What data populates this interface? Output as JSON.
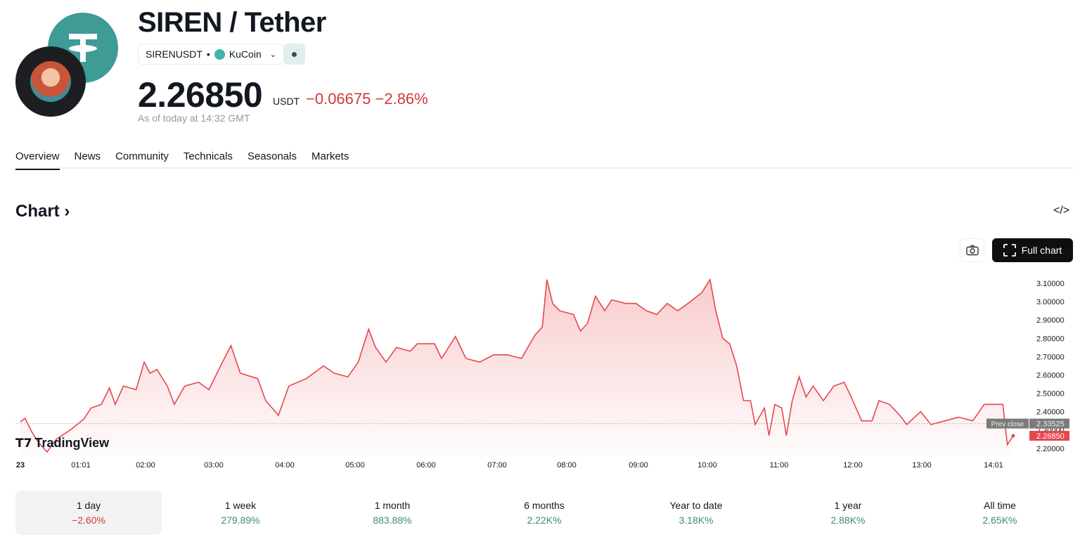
{
  "header": {
    "title": "SIREN / Tether",
    "symbol": "SIRENUSDT",
    "exchange": "KuCoin",
    "price": "2.26850",
    "currency": "USDT",
    "change": "−0.06675",
    "change_pct": "−2.86%",
    "as_of": "As of today at 14:32 GMT"
  },
  "tabs": [
    {
      "label": "Overview"
    },
    {
      "label": "News"
    },
    {
      "label": "Community"
    },
    {
      "label": "Technicals"
    },
    {
      "label": "Seasonals"
    },
    {
      "label": "Markets"
    }
  ],
  "chart_section": {
    "heading": "Chart ›",
    "embed_icon": "</>",
    "full_chart": "Full chart",
    "brand": "TradingView"
  },
  "colors": {
    "line": "#e5484d",
    "negative": "#d03b3b",
    "positive": "#3b8b76",
    "tether": "#3f9b96"
  },
  "chart_data": {
    "type": "area",
    "ylim": [
      2.17,
      3.13
    ],
    "y_ticks": [
      "3.10000",
      "3.00000",
      "2.90000",
      "2.80000",
      "2.70000",
      "2.60000",
      "2.50000",
      "2.40000",
      "2.30000",
      "2.20000"
    ],
    "x_ticks": [
      "23",
      "01:01",
      "02:00",
      "03:00",
      "04:00",
      "05:00",
      "06:00",
      "07:00",
      "08:00",
      "09:00",
      "10:00",
      "11:00",
      "12:00",
      "13:00",
      "14:01"
    ],
    "prev_close": {
      "label": "Prev close",
      "value": "2.33525"
    },
    "last": {
      "value": "2.26850"
    },
    "points": [
      [
        "00:00",
        2.345
      ],
      [
        "00:04",
        2.364
      ],
      [
        "00:10",
        2.288
      ],
      [
        "00:16",
        2.23
      ],
      [
        "00:23",
        2.18
      ],
      [
        "00:31",
        2.25
      ],
      [
        "00:43",
        2.3
      ],
      [
        "00:55",
        2.36
      ],
      [
        "01:01",
        2.42
      ],
      [
        "01:10",
        2.44
      ],
      [
        "01:17",
        2.53
      ],
      [
        "01:22",
        2.44
      ],
      [
        "01:29",
        2.54
      ],
      [
        "01:40",
        2.52
      ],
      [
        "01:47",
        2.67
      ],
      [
        "01:52",
        2.61
      ],
      [
        "01:58",
        2.63
      ],
      [
        "02:07",
        2.54
      ],
      [
        "02:13",
        2.44
      ],
      [
        "02:22",
        2.54
      ],
      [
        "02:34",
        2.56
      ],
      [
        "02:43",
        2.52
      ],
      [
        "02:53",
        2.65
      ],
      [
        "03:02",
        2.76
      ],
      [
        "03:10",
        2.61
      ],
      [
        "03:25",
        2.58
      ],
      [
        "03:32",
        2.46
      ],
      [
        "03:43",
        2.38
      ],
      [
        "03:52",
        2.54
      ],
      [
        "04:07",
        2.58
      ],
      [
        "04:22",
        2.65
      ],
      [
        "04:31",
        2.61
      ],
      [
        "04:43",
        2.59
      ],
      [
        "04:52",
        2.67
      ],
      [
        "05:01",
        2.85
      ],
      [
        "05:07",
        2.75
      ],
      [
        "05:16",
        2.67
      ],
      [
        "05:25",
        2.75
      ],
      [
        "05:37",
        2.73
      ],
      [
        "05:43",
        2.77
      ],
      [
        "05:58",
        2.77
      ],
      [
        "06:04",
        2.69
      ],
      [
        "06:16",
        2.81
      ],
      [
        "06:25",
        2.69
      ],
      [
        "06:37",
        2.67
      ],
      [
        "06:49",
        2.71
      ],
      [
        "07:01",
        2.71
      ],
      [
        "07:13",
        2.69
      ],
      [
        "07:25",
        2.82
      ],
      [
        "07:31",
        2.86
      ],
      [
        "07:35",
        3.12
      ],
      [
        "07:40",
        2.99
      ],
      [
        "07:46",
        2.95
      ],
      [
        "07:58",
        2.93
      ],
      [
        "08:04",
        2.84
      ],
      [
        "08:10",
        2.88
      ],
      [
        "08:17",
        3.03
      ],
      [
        "08:25",
        2.95
      ],
      [
        "08:31",
        3.01
      ],
      [
        "08:43",
        2.99
      ],
      [
        "08:52",
        2.99
      ],
      [
        "09:01",
        2.95
      ],
      [
        "09:10",
        2.93
      ],
      [
        "09:19",
        2.99
      ],
      [
        "09:28",
        2.95
      ],
      [
        "09:37",
        2.99
      ],
      [
        "09:49",
        3.05
      ],
      [
        "09:56",
        3.12
      ],
      [
        "10:01",
        2.95
      ],
      [
        "10:07",
        2.8
      ],
      [
        "10:13",
        2.77
      ],
      [
        "10:19",
        2.65
      ],
      [
        "10:25",
        2.46
      ],
      [
        "10:31",
        2.46
      ],
      [
        "10:35",
        2.33
      ],
      [
        "10:43",
        2.42
      ],
      [
        "10:47",
        2.27
      ],
      [
        "10:52",
        2.44
      ],
      [
        "10:58",
        2.42
      ],
      [
        "11:02",
        2.27
      ],
      [
        "11:07",
        2.46
      ],
      [
        "11:13",
        2.59
      ],
      [
        "11:19",
        2.48
      ],
      [
        "11:25",
        2.54
      ],
      [
        "11:34",
        2.46
      ],
      [
        "11:43",
        2.54
      ],
      [
        "11:52",
        2.56
      ],
      [
        "11:58",
        2.48
      ],
      [
        "12:07",
        2.35
      ],
      [
        "12:16",
        2.35
      ],
      [
        "12:22",
        2.46
      ],
      [
        "12:31",
        2.44
      ],
      [
        "12:40",
        2.38
      ],
      [
        "12:46",
        2.33
      ],
      [
        "12:58",
        2.4
      ],
      [
        "13:07",
        2.33
      ],
      [
        "13:19",
        2.35
      ],
      [
        "13:31",
        2.37
      ],
      [
        "13:43",
        2.35
      ],
      [
        "13:53",
        2.44
      ],
      [
        "14:00",
        2.44
      ],
      [
        "14:09",
        2.44
      ],
      [
        "14:13",
        2.22
      ],
      [
        "14:18",
        2.2685
      ]
    ]
  },
  "periods": [
    {
      "label": "1 day",
      "value": "−2.60%",
      "negative": true
    },
    {
      "label": "1 week",
      "value": "279.89%"
    },
    {
      "label": "1 month",
      "value": "883.88%"
    },
    {
      "label": "6 months",
      "value": "2.22K%"
    },
    {
      "label": "Year to date",
      "value": "3.18K%"
    },
    {
      "label": "1 year",
      "value": "2.88K%"
    },
    {
      "label": "All time",
      "value": "2.65K%"
    }
  ]
}
